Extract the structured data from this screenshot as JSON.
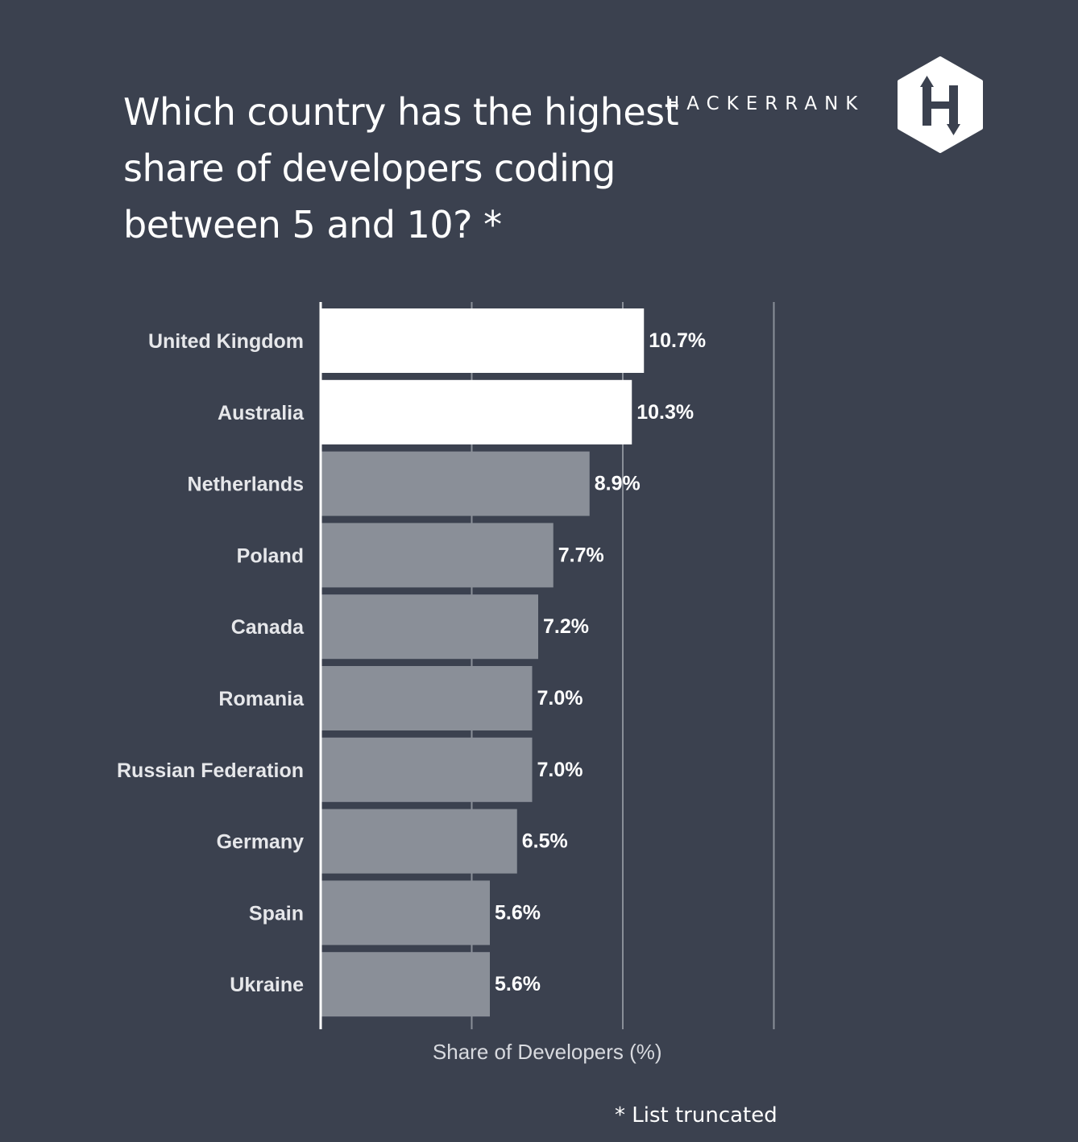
{
  "header": {
    "title": "Which country has the highest share of developers coding between 5 and 10? *",
    "brand": "HACKERRANK",
    "logo_letter": "H"
  },
  "footnote": "* List truncated",
  "colors": {
    "background": "#3b414f",
    "highlight_bar": "#ffffff",
    "default_bar": "#8a8f98",
    "category_label": "#e6e7ea",
    "gridline": "#8a8f98",
    "axis_title": "#d8dadf"
  },
  "chart_data": {
    "type": "bar",
    "orientation": "horizontal",
    "categories": [
      "United Kingdom",
      "Australia",
      "Netherlands",
      "Poland",
      "Canada",
      "Romania",
      "Russian Federation",
      "Germany",
      "Spain",
      "Ukraine"
    ],
    "values": [
      10.7,
      10.3,
      8.9,
      7.7,
      7.2,
      7.0,
      7.0,
      6.5,
      5.6,
      5.6
    ],
    "value_labels": [
      "10.7%",
      "10.3%",
      "8.9%",
      "7.7%",
      "7.2%",
      "7.0%",
      "7.0%",
      "6.5%",
      "5.6%",
      "5.6%"
    ],
    "highlighted": [
      true,
      true,
      false,
      false,
      false,
      false,
      false,
      false,
      false,
      false
    ],
    "xlabel": "Share of Developers (%)",
    "xlim": [
      0,
      15
    ],
    "gridlines": [
      5,
      10,
      15
    ],
    "grid": true
  }
}
